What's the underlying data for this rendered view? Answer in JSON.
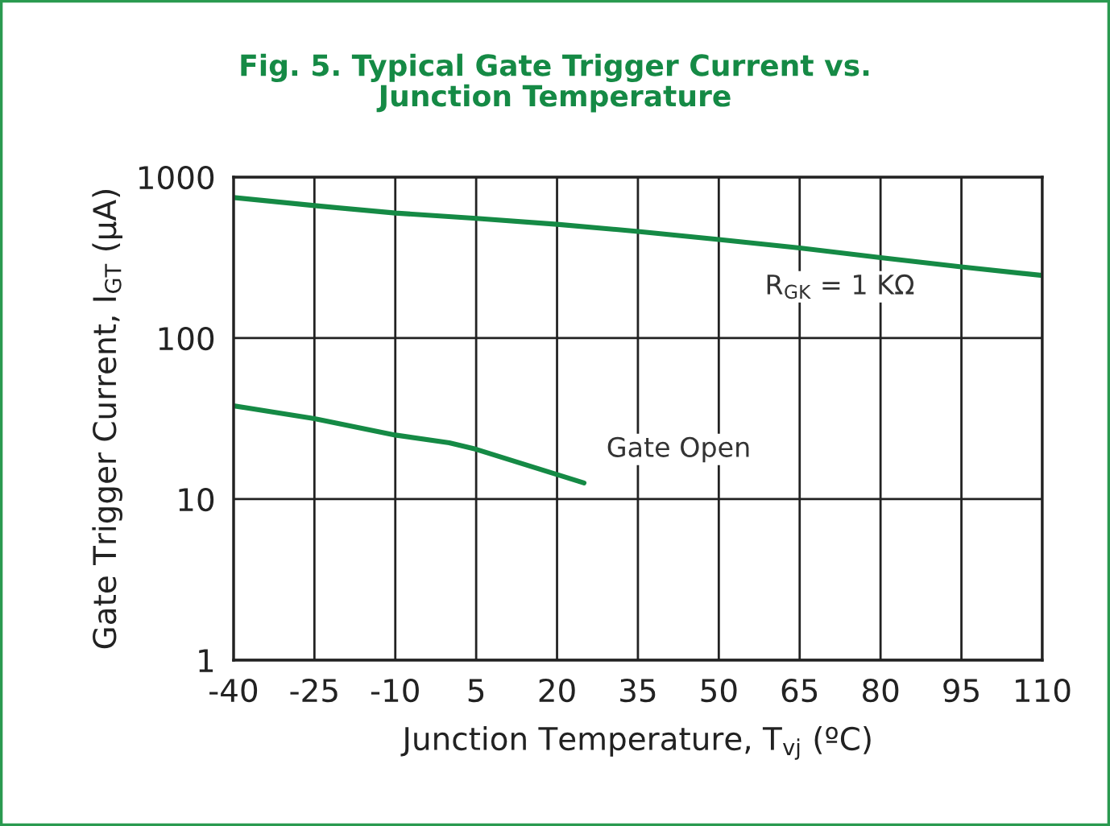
{
  "chart_data": {
    "type": "line",
    "title": "Fig. 5. Typical Gate Trigger Current vs.\nJunction Temperature",
    "xlabel": "Junction Temperature, T$_{vj}$ (ºC)",
    "ylabel": "Gate Trigger Current, I$_{GT}$ (µA)",
    "log": "y",
    "grid": true,
    "legend": false,
    "marker": "none",
    "line_style": "solid",
    "xlim": [
      -40,
      110
    ],
    "xticks": [
      -40,
      -25,
      -10,
      5,
      20,
      35,
      50,
      65,
      80,
      95,
      110
    ],
    "ylim": [
      1,
      1000
    ],
    "yticks": [
      1,
      10,
      100,
      1000
    ],
    "series": [
      {
        "name": "R$_{GK}$ = 1 KΩ",
        "color": "#158a45",
        "x": [
          -40,
          -25,
          -10,
          5,
          20,
          35,
          50,
          65,
          80,
          95,
          110
        ],
        "values": [
          747,
          665,
          598,
          554,
          509,
          460,
          410,
          363,
          316,
          277,
          245
        ]
      },
      {
        "name": "Gate Open",
        "color": "#158a45",
        "x": [
          -40,
          -25,
          -10,
          0,
          5,
          25
        ],
        "values": [
          38,
          31.6,
          25,
          22.4,
          20.4,
          12.6
        ]
      }
    ]
  }
}
